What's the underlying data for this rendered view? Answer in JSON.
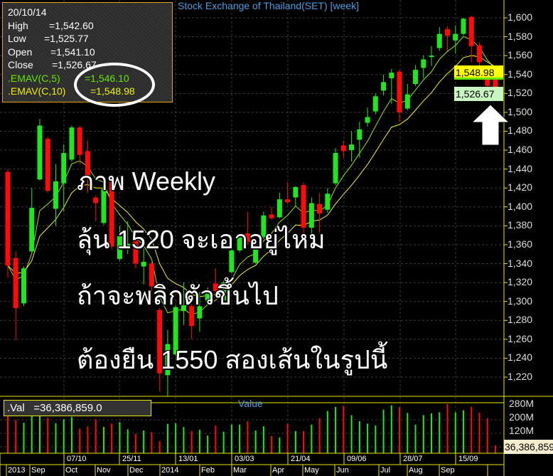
{
  "chart_title": "Stock Exchange of Thailand(SET) [week]",
  "info": {
    "date": "20/10/14",
    "high_label": "High",
    "high": "=1,542.60",
    "low_label": "Low",
    "low": "=1,525.77",
    "open_label": "Open",
    "open": "=1,541.10",
    "close_label": "Close",
    "close": "=1,526.67",
    "ema5_label": ".EMAV(C,5)",
    "ema5": "=1,546.10",
    "ema10_label": ".EMAV(C,10)",
    "ema10": "=1,548.98"
  },
  "overlay_text": [
    "ภาพ Weekly",
    "ลุ้น 1520 จะเอาอยู่ไหม",
    "ถ้าจะพลิกตัวขึ้นไป",
    "ต้องยืน 1550 สองเส้นในรูปนี้"
  ],
  "price_axis": [
    "1,600",
    "1,580",
    "1,560",
    "1,540",
    "1,520",
    "1,500",
    "1,480",
    "1,460",
    "1,440",
    "1,420",
    "1,400",
    "1,380",
    "1,360",
    "1,340",
    "1,320",
    "1,300",
    "1,280",
    "1,260",
    "1,240",
    "1,220"
  ],
  "price_tags": {
    "ema10": "1,548.98",
    "close": "1,526.67"
  },
  "volume": {
    "box_label": ".Val   =36,386,859.0",
    "title": "Value",
    "axis": [
      "280M",
      "200M",
      "120M"
    ],
    "last_tag": "36,386,859.0"
  },
  "dates": [
    "07/10",
    "25/11",
    "13/01",
    "03/03",
    "21/04",
    "09/06",
    "28/07",
    "15/09"
  ],
  "months": [
    "2013",
    "Sep",
    "Oct",
    "Nov",
    "Dec",
    "2014",
    "Feb",
    "Mar",
    "Apr",
    "May",
    "Jun",
    "Jul",
    "Aug",
    "Sep"
  ],
  "colors": {
    "up": "#1fe61f",
    "down": "#ff0a0a",
    "ema5": "#9be600",
    "ema10": "#f5f500",
    "axis": "#e8e800",
    "title": "#4a9de0"
  },
  "chart_data": {
    "type": "candlestick",
    "title": "Stock Exchange of Thailand(SET) [week]",
    "ylim": [
      1200,
      1610
    ],
    "ohlc": [
      [
        1437,
        1440,
        1325,
        1338
      ],
      [
        1346,
        1353,
        1259,
        1293
      ],
      [
        1298,
        1337,
        1295,
        1335
      ],
      [
        1353,
        1420,
        1352,
        1399
      ],
      [
        1429,
        1493,
        1428,
        1486
      ],
      [
        1472,
        1474,
        1415,
        1417
      ],
      [
        1398,
        1445,
        1380,
        1427
      ],
      [
        1425,
        1466,
        1395,
        1457
      ],
      [
        1450,
        1486,
        1448,
        1484
      ],
      [
        1484,
        1486,
        1445,
        1455
      ],
      [
        1459,
        1470,
        1415,
        1430
      ],
      [
        1410,
        1412,
        1385,
        1404
      ],
      [
        1383,
        1420,
        1381,
        1419
      ],
      [
        1428,
        1430,
        1355,
        1358
      ],
      [
        1345,
        1380,
        1343,
        1369
      ],
      [
        1358,
        1385,
        1350,
        1361
      ],
      [
        1369,
        1371,
        1335,
        1340
      ],
      [
        1337,
        1356,
        1318,
        1342
      ],
      [
        1340,
        1342,
        1300,
        1316
      ],
      [
        1291,
        1293,
        1205,
        1224
      ],
      [
        1222,
        1270,
        1200,
        1255
      ],
      [
        1244,
        1296,
        1243,
        1294
      ],
      [
        1290,
        1320,
        1275,
        1296
      ],
      [
        1295,
        1297,
        1260,
        1274
      ],
      [
        1282,
        1310,
        1268,
        1295
      ],
      [
        1301,
        1315,
        1300,
        1312
      ],
      [
        1319,
        1335,
        1310,
        1311
      ],
      [
        1301,
        1322,
        1300,
        1320
      ],
      [
        1331,
        1356,
        1330,
        1354
      ],
      [
        1354,
        1372,
        1352,
        1371
      ],
      [
        1372,
        1395,
        1360,
        1363
      ],
      [
        1341,
        1360,
        1340,
        1358
      ],
      [
        1368,
        1395,
        1366,
        1391
      ],
      [
        1392,
        1400,
        1386,
        1388
      ],
      [
        1389,
        1415,
        1388,
        1408
      ],
      [
        1408,
        1426,
        1403,
        1405
      ],
      [
        1410,
        1422,
        1401,
        1421
      ],
      [
        1423,
        1426,
        1372,
        1378
      ],
      [
        1378,
        1410,
        1370,
        1404
      ],
      [
        1403,
        1415,
        1373,
        1393
      ],
      [
        1397,
        1420,
        1394,
        1414
      ],
      [
        1425,
        1462,
        1423,
        1457
      ],
      [
        1465,
        1470,
        1452,
        1459
      ],
      [
        1460,
        1480,
        1448,
        1466
      ],
      [
        1471,
        1490,
        1452,
        1482
      ],
      [
        1489,
        1505,
        1485,
        1495
      ],
      [
        1501,
        1520,
        1498,
        1517
      ],
      [
        1523,
        1540,
        1518,
        1532
      ],
      [
        1536,
        1546,
        1509,
        1542
      ],
      [
        1543,
        1545,
        1490,
        1500
      ],
      [
        1504,
        1530,
        1502,
        1519
      ],
      [
        1530,
        1550,
        1528,
        1545
      ],
      [
        1547,
        1560,
        1536,
        1556
      ],
      [
        1559,
        1570,
        1549,
        1560
      ],
      [
        1568,
        1590,
        1565,
        1583
      ],
      [
        1588,
        1591,
        1565,
        1581
      ],
      [
        1576,
        1592,
        1562,
        1583
      ],
      [
        1583,
        1600,
        1581,
        1599
      ],
      [
        1601,
        1602,
        1553,
        1570
      ],
      [
        1571,
        1574,
        1538,
        1553
      ],
      [
        1543,
        1545,
        1520,
        1528
      ],
      [
        1541.1,
        1542.6,
        1525.77,
        1526.67
      ]
    ],
    "series": [
      {
        "name": ".EMAV(C,5)",
        "period": 5
      },
      {
        "name": ".EMAV(C,10)",
        "period": 10
      }
    ],
    "volume_millions": [
      211,
      186,
      170,
      211,
      211,
      200,
      167,
      190,
      204,
      135,
      149,
      190,
      145,
      165,
      174,
      131,
      103,
      124,
      114,
      62,
      163,
      167,
      145,
      121,
      128,
      94,
      153,
      117,
      159,
      159,
      178,
      124,
      149,
      91,
      83,
      163,
      121,
      121,
      159,
      197,
      239,
      263,
      270,
      215,
      179,
      165,
      154,
      248,
      273,
      262,
      228,
      159,
      215,
      225,
      232,
      280,
      232,
      244,
      265,
      229,
      197,
      36
    ],
    "volume_ylim": [
      0,
      300
    ]
  }
}
